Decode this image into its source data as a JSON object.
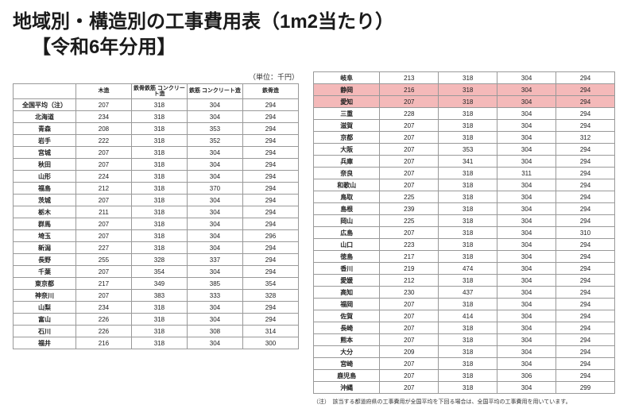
{
  "title": {
    "line1": "地域別・構造別の工事費用表（1m2当たり）",
    "line2": "【令和6年分用】"
  },
  "unit_label": "（単位：千円）",
  "columns": [
    "木造",
    "鉄骨鉄筋\nコンクリート造",
    "鉄筋\nコンクリート造",
    "鉄骨造"
  ],
  "note": "（注）　該当する都道府県の工事費用が全国平均を下回る場合は、全国平均の工事費用を用いています。",
  "highlight_color": "#f4b9b9",
  "left_rows": [
    {
      "region": "全国平均（注）",
      "v": [
        207,
        318,
        304,
        294
      ]
    },
    {
      "region": "北海道",
      "v": [
        234,
        318,
        304,
        294
      ]
    },
    {
      "region": "青森",
      "v": [
        208,
        318,
        353,
        294
      ]
    },
    {
      "region": "岩手",
      "v": [
        222,
        318,
        352,
        294
      ]
    },
    {
      "region": "宮城",
      "v": [
        207,
        318,
        304,
        294
      ]
    },
    {
      "region": "秋田",
      "v": [
        207,
        318,
        304,
        294
      ]
    },
    {
      "region": "山形",
      "v": [
        224,
        318,
        304,
        294
      ]
    },
    {
      "region": "福島",
      "v": [
        212,
        318,
        370,
        294
      ]
    },
    {
      "region": "茨城",
      "v": [
        207,
        318,
        304,
        294
      ]
    },
    {
      "region": "栃木",
      "v": [
        211,
        318,
        304,
        294
      ]
    },
    {
      "region": "群馬",
      "v": [
        207,
        318,
        304,
        294
      ]
    },
    {
      "region": "埼玉",
      "v": [
        207,
        318,
        304,
        296
      ]
    },
    {
      "region": "新潟",
      "v": [
        227,
        318,
        304,
        294
      ]
    },
    {
      "region": "長野",
      "v": [
        255,
        328,
        337,
        294
      ]
    },
    {
      "region": "千葉",
      "v": [
        207,
        354,
        304,
        294
      ]
    },
    {
      "region": "東京都",
      "v": [
        217,
        349,
        385,
        354
      ]
    },
    {
      "region": "神奈川",
      "v": [
        207,
        383,
        333,
        328
      ]
    },
    {
      "region": "山梨",
      "v": [
        234,
        318,
        304,
        294
      ]
    },
    {
      "region": "富山",
      "v": [
        226,
        318,
        304,
        294
      ]
    },
    {
      "region": "石川",
      "v": [
        226,
        318,
        308,
        314
      ]
    },
    {
      "region": "福井",
      "v": [
        216,
        318,
        304,
        300
      ]
    }
  ],
  "right_rows": [
    {
      "region": "岐阜",
      "v": [
        213,
        318,
        304,
        294
      ]
    },
    {
      "region": "静岡",
      "v": [
        216,
        318,
        304,
        294
      ],
      "hl": true
    },
    {
      "region": "愛知",
      "v": [
        207,
        318,
        304,
        294
      ],
      "hl": true
    },
    {
      "region": "三重",
      "v": [
        228,
        318,
        304,
        294
      ]
    },
    {
      "region": "滋賀",
      "v": [
        207,
        318,
        304,
        294
      ]
    },
    {
      "region": "京都",
      "v": [
        207,
        318,
        304,
        312
      ]
    },
    {
      "region": "大阪",
      "v": [
        207,
        353,
        304,
        294
      ]
    },
    {
      "region": "兵庫",
      "v": [
        207,
        341,
        304,
        294
      ]
    },
    {
      "region": "奈良",
      "v": [
        207,
        318,
        311,
        294
      ]
    },
    {
      "region": "和歌山",
      "v": [
        207,
        318,
        304,
        294
      ]
    },
    {
      "region": "鳥取",
      "v": [
        225,
        318,
        304,
        294
      ]
    },
    {
      "region": "島根",
      "v": [
        239,
        318,
        304,
        294
      ]
    },
    {
      "region": "岡山",
      "v": [
        225,
        318,
        304,
        294
      ]
    },
    {
      "region": "広島",
      "v": [
        207,
        318,
        304,
        310
      ]
    },
    {
      "region": "山口",
      "v": [
        223,
        318,
        304,
        294
      ]
    },
    {
      "region": "徳島",
      "v": [
        217,
        318,
        304,
        294
      ]
    },
    {
      "region": "香川",
      "v": [
        219,
        474,
        304,
        294
      ]
    },
    {
      "region": "愛媛",
      "v": [
        212,
        318,
        304,
        294
      ]
    },
    {
      "region": "高知",
      "v": [
        230,
        437,
        304,
        294
      ]
    },
    {
      "region": "福岡",
      "v": [
        207,
        318,
        304,
        294
      ]
    },
    {
      "region": "佐賀",
      "v": [
        207,
        414,
        304,
        294
      ]
    },
    {
      "region": "長崎",
      "v": [
        207,
        318,
        304,
        294
      ]
    },
    {
      "region": "熊本",
      "v": [
        207,
        318,
        304,
        294
      ]
    },
    {
      "region": "大分",
      "v": [
        209,
        318,
        304,
        294
      ]
    },
    {
      "region": "宮崎",
      "v": [
        207,
        318,
        304,
        294
      ]
    },
    {
      "region": "鹿児島",
      "v": [
        207,
        318,
        306,
        294
      ]
    },
    {
      "region": "沖縄",
      "v": [
        207,
        318,
        304,
        299
      ]
    }
  ]
}
